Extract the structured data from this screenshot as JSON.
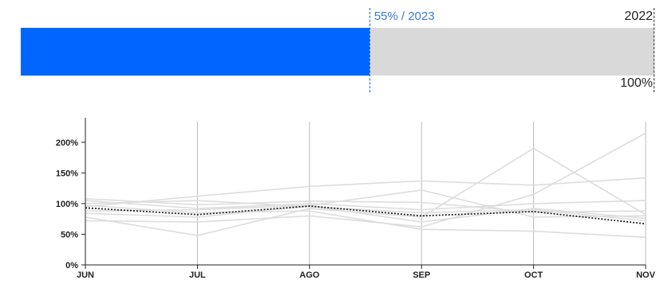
{
  "progress": {
    "marker_label": "55% / 2023",
    "fill_fraction": 0.55,
    "end_year": "2022",
    "end_pct": "100%",
    "fill_color": "#0066ff",
    "track_color": "#d9d9d9",
    "marker_color": "#1a5cff"
  },
  "chart_data": {
    "type": "line",
    "title": "",
    "xlabel": "",
    "ylabel": "",
    "categories": [
      "JUN",
      "JUL",
      "AGO",
      "SEP",
      "OCT",
      "NOV"
    ],
    "y_ticks": [
      "0%",
      "50%",
      "100%",
      "150%",
      "200%"
    ],
    "ylim": [
      0,
      240
    ],
    "grid": "vertical",
    "background_series": [
      {
        "values": [
          100,
          105,
          95,
          85,
          90,
          72
        ]
      },
      {
        "values": [
          95,
          112,
          128,
          137,
          130,
          142
        ]
      },
      {
        "values": [
          78,
          48,
          92,
          78,
          190,
          82
        ]
      },
      {
        "values": [
          88,
          90,
          97,
          122,
          78,
          80
        ]
      },
      {
        "values": [
          105,
          92,
          100,
          90,
          100,
          105
        ]
      },
      {
        "values": [
          72,
          70,
          80,
          62,
          115,
          215
        ]
      },
      {
        "values": [
          97,
          85,
          88,
          58,
          55,
          45
        ]
      },
      {
        "values": [
          84,
          78,
          96,
          70,
          92,
          76
        ]
      },
      {
        "values": [
          108,
          98,
          104,
          102,
          86,
          88
        ]
      }
    ],
    "highlight_series": {
      "values": [
        93,
        82,
        96,
        80,
        87,
        67
      ]
    },
    "background_color": "#dddddd",
    "highlight_color": "#222222"
  }
}
